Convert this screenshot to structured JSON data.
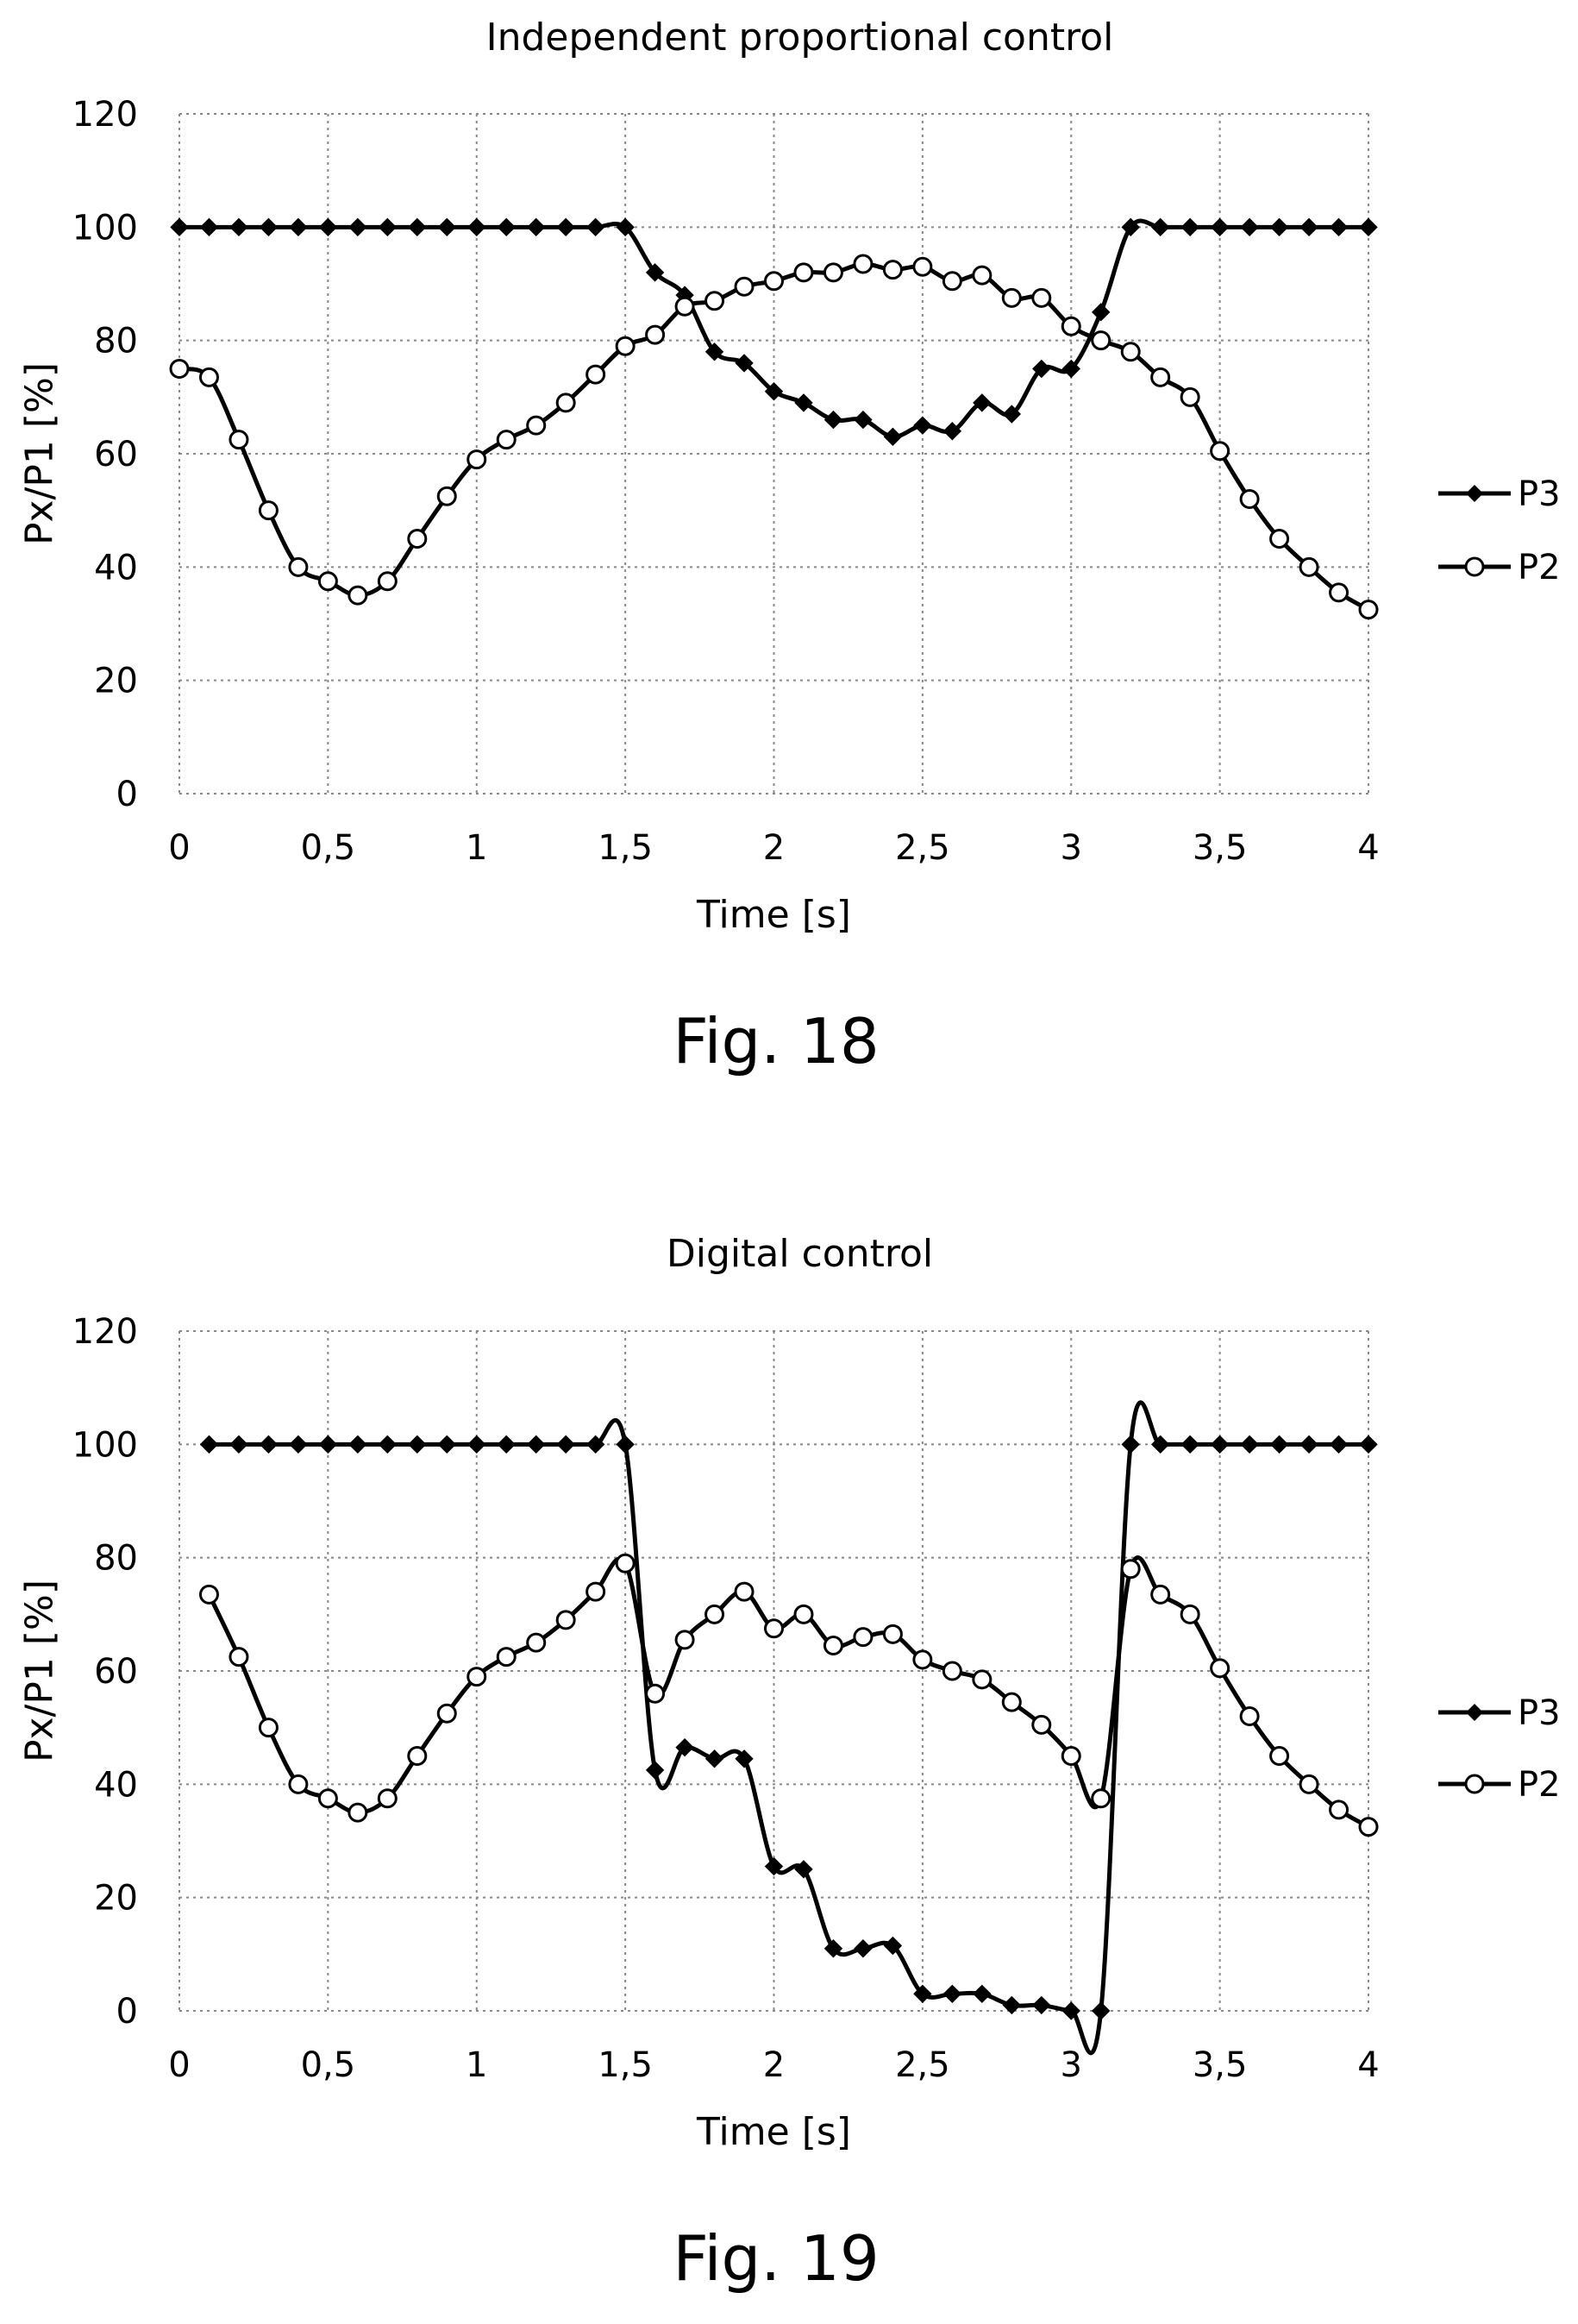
{
  "chart_data": [
    {
      "type": "line",
      "title": "Independent proportional control",
      "xlabel": "Time [s]",
      "ylabel": "Px/P1 [%]",
      "xlim": [
        0,
        4
      ],
      "ylim": [
        0,
        120
      ],
      "x_ticks": [
        "0",
        "0,5",
        "1",
        "1,5",
        "2",
        "2,5",
        "3",
        "3,5",
        "4"
      ],
      "y_ticks": [
        "0",
        "20",
        "40",
        "60",
        "80",
        "100",
        "120"
      ],
      "grid": true,
      "legend": "right",
      "caption": "Fig. 18",
      "series": [
        {
          "name": "P3",
          "marker": "filled-diamond",
          "x": [
            0,
            0.1,
            0.2,
            0.3,
            0.4,
            0.5,
            0.6,
            0.7,
            0.8,
            0.9,
            1.0,
            1.1,
            1.2,
            1.3,
            1.4,
            1.5,
            1.6,
            1.7,
            1.8,
            1.9,
            2.0,
            2.1,
            2.2,
            2.3,
            2.4,
            2.5,
            2.6,
            2.7,
            2.8,
            2.9,
            3.0,
            3.1,
            3.2,
            3.3,
            3.4,
            3.5,
            3.6,
            3.7,
            3.8,
            3.9,
            4.0
          ],
          "y": [
            100,
            100,
            100,
            100,
            100,
            100,
            100,
            100,
            100,
            100,
            100,
            100,
            100,
            100,
            100,
            100,
            92,
            88,
            78,
            76,
            71,
            69,
            66,
            66,
            63,
            65,
            64,
            69,
            67,
            75,
            75,
            85,
            100,
            100,
            100,
            100,
            100,
            100,
            100,
            100,
            100
          ]
        },
        {
          "name": "P2",
          "marker": "open-circle",
          "x": [
            0,
            0.1,
            0.2,
            0.3,
            0.4,
            0.5,
            0.6,
            0.7,
            0.8,
            0.9,
            1.0,
            1.1,
            1.2,
            1.3,
            1.4,
            1.5,
            1.6,
            1.7,
            1.8,
            1.9,
            2.0,
            2.1,
            2.2,
            2.3,
            2.4,
            2.5,
            2.6,
            2.7,
            2.8,
            2.9,
            3.0,
            3.1,
            3.2,
            3.3,
            3.4,
            3.5,
            3.6,
            3.7,
            3.8,
            3.9,
            4.0
          ],
          "y": [
            75,
            73.5,
            62.5,
            50,
            40,
            37.5,
            35,
            37.5,
            45,
            52.5,
            59,
            62.5,
            65,
            69,
            74,
            79,
            81,
            86,
            87,
            89.5,
            90.5,
            92,
            92,
            93.5,
            92.5,
            93,
            90.5,
            91.5,
            87.5,
            87.5,
            82.5,
            80,
            78,
            73.5,
            70,
            60.5,
            52,
            45,
            40,
            35.5,
            32.5
          ]
        }
      ]
    },
    {
      "type": "line",
      "title": "Digital control",
      "xlabel": "Time [s]",
      "ylabel": "Px/P1 [%]",
      "xlim": [
        0,
        4
      ],
      "ylim": [
        0,
        120
      ],
      "x_ticks": [
        "0",
        "0,5",
        "1",
        "1,5",
        "2",
        "2,5",
        "3",
        "3,5",
        "4"
      ],
      "y_ticks": [
        "0",
        "20",
        "40",
        "60",
        "80",
        "100",
        "120"
      ],
      "grid": true,
      "legend": "right",
      "caption": "Fig. 19",
      "series": [
        {
          "name": "P3",
          "marker": "filled-diamond",
          "x": [
            0.1,
            0.2,
            0.3,
            0.4,
            0.5,
            0.6,
            0.7,
            0.8,
            0.9,
            1.0,
            1.1,
            1.2,
            1.3,
            1.4,
            1.5,
            1.6,
            1.7,
            1.8,
            1.9,
            2.0,
            2.1,
            2.2,
            2.3,
            2.4,
            2.5,
            2.6,
            2.7,
            2.8,
            2.9,
            3.0,
            3.1,
            3.2,
            3.3,
            3.4,
            3.5,
            3.6,
            3.7,
            3.8,
            3.9,
            4.0
          ],
          "y": [
            100,
            100,
            100,
            100,
            100,
            100,
            100,
            100,
            100,
            100,
            100,
            100,
            100,
            100,
            100,
            42.5,
            46.5,
            44.5,
            44.5,
            25.5,
            25,
            11,
            11,
            11.5,
            3,
            3,
            3,
            1,
            1,
            0,
            0,
            100,
            100,
            100,
            100,
            100,
            100,
            100,
            100,
            100
          ]
        },
        {
          "name": "P2",
          "marker": "open-circle",
          "x": [
            0.1,
            0.2,
            0.3,
            0.4,
            0.5,
            0.6,
            0.7,
            0.8,
            0.9,
            1.0,
            1.1,
            1.2,
            1.3,
            1.4,
            1.5,
            1.6,
            1.7,
            1.8,
            1.9,
            2.0,
            2.1,
            2.2,
            2.3,
            2.4,
            2.5,
            2.6,
            2.7,
            2.8,
            2.9,
            3.0,
            3.1,
            3.2,
            3.3,
            3.4,
            3.5,
            3.6,
            3.7,
            3.8,
            3.9,
            4.0
          ],
          "y": [
            73.5,
            62.5,
            50,
            40,
            37.5,
            35,
            37.5,
            45,
            52.5,
            59,
            62.5,
            65,
            69,
            74,
            79,
            56,
            65.5,
            70,
            74,
            67.5,
            70,
            64.5,
            66,
            66.5,
            62,
            60,
            58.5,
            54.5,
            50.5,
            45,
            37.5,
            78,
            73.5,
            70,
            60.5,
            52,
            45,
            40,
            35.5,
            32.5
          ]
        }
      ]
    }
  ]
}
